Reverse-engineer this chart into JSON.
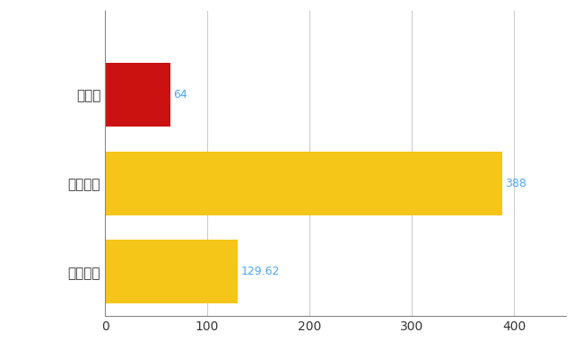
{
  "categories": [
    "石川県",
    "全国最大",
    "全国平均"
  ],
  "values": [
    64,
    388,
    129.62
  ],
  "bar_colors": [
    "#cc1111",
    "#f5c518",
    "#f5c518"
  ],
  "value_labels": [
    "64",
    "388",
    "129.62"
  ],
  "xlim": [
    0,
    450
  ],
  "xticks": [
    0,
    100,
    200,
    300,
    400
  ],
  "background_color": "#ffffff",
  "grid_color": "#cccccc",
  "label_color": "#4da6ff",
  "bar_height": 0.72,
  "figsize": [
    6.5,
    4.0
  ],
  "dpi": 100
}
